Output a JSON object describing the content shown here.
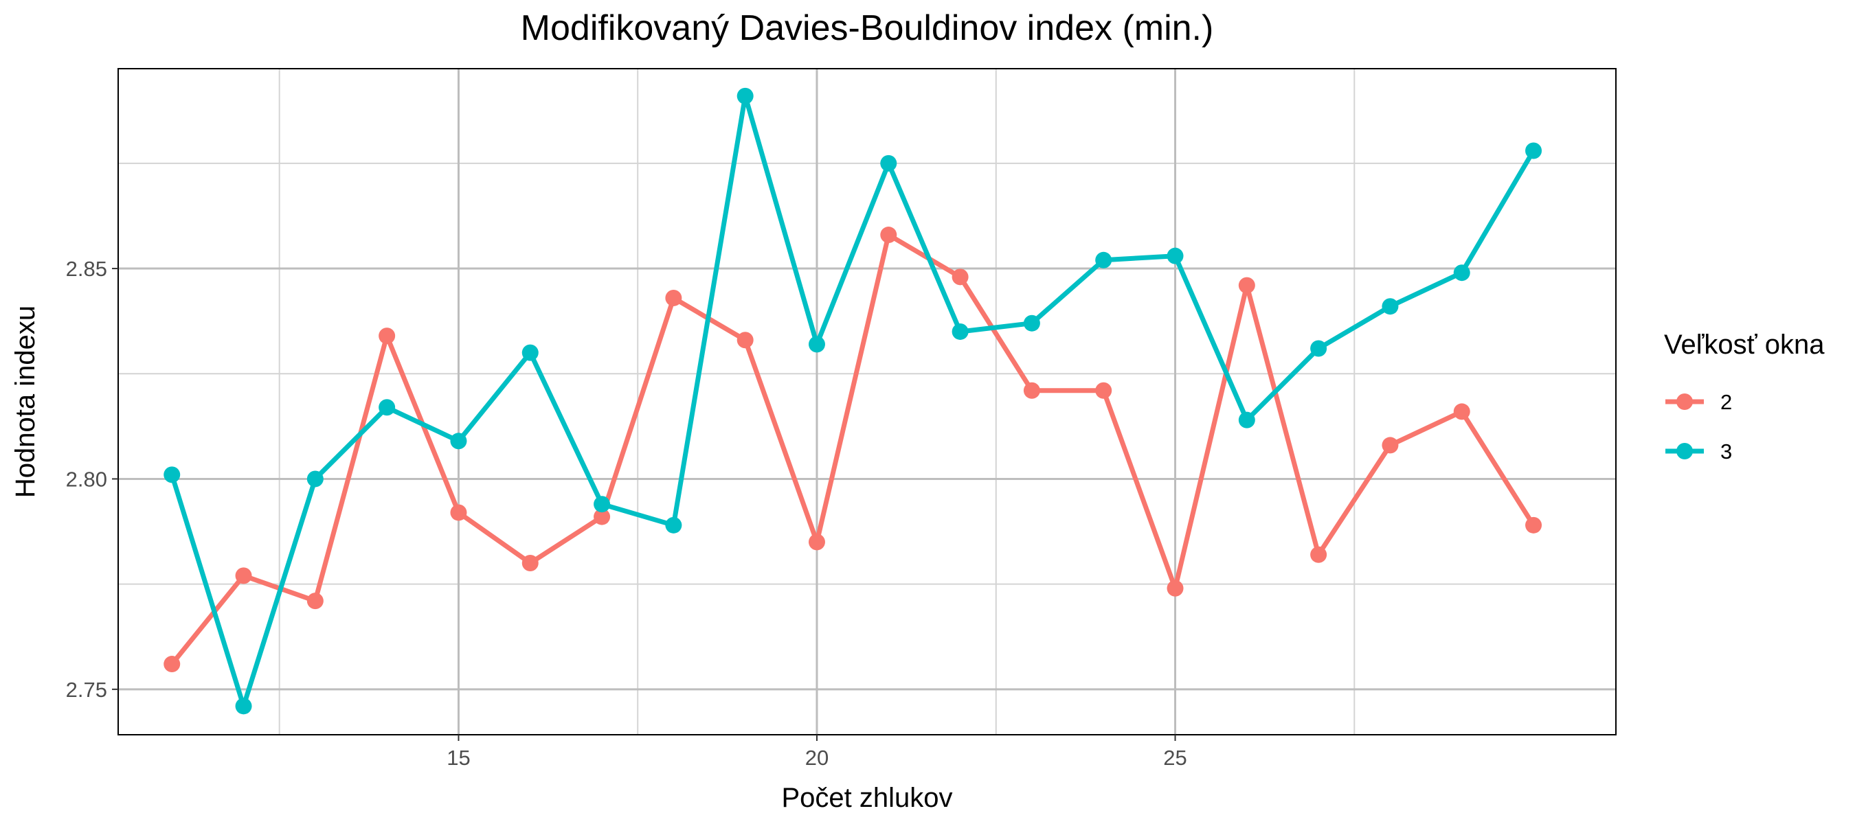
{
  "chart_data": {
    "type": "line",
    "title": "Modifikovaný Davies-Bouldinov index (min.)",
    "xlabel": "Počet zhlukov",
    "ylabel": "Hodnota indexu",
    "x": [
      11,
      12,
      13,
      14,
      15,
      16,
      17,
      18,
      19,
      20,
      21,
      22,
      23,
      24,
      25,
      26,
      27,
      28,
      29,
      30
    ],
    "xlim": [
      10.25,
      31.15
    ],
    "ylim": [
      2.7392,
      2.8975
    ],
    "x_ticks": [
      15,
      20,
      25
    ],
    "x_tick_labels": [
      "15",
      "20",
      "25"
    ],
    "y_ticks": [
      2.75,
      2.8,
      2.85
    ],
    "y_tick_labels": [
      "2.75",
      "2.80",
      "2.85"
    ],
    "grid": true,
    "legend": {
      "title": "Veľkosť okna",
      "placement": "right"
    },
    "series": [
      {
        "name": "2",
        "color": "#F8766D",
        "values": [
          2.756,
          2.777,
          2.771,
          2.834,
          2.792,
          2.78,
          2.791,
          2.843,
          2.833,
          2.785,
          2.858,
          2.848,
          2.821,
          2.821,
          2.774,
          2.846,
          2.782,
          2.808,
          2.816,
          2.789
        ]
      },
      {
        "name": "3",
        "color": "#00BFC4",
        "values": [
          2.801,
          2.746,
          2.8,
          2.817,
          2.809,
          2.83,
          2.794,
          2.789,
          2.891,
          2.832,
          2.875,
          2.835,
          2.837,
          2.852,
          2.853,
          2.814,
          2.831,
          2.841,
          2.849,
          2.878
        ]
      }
    ]
  }
}
